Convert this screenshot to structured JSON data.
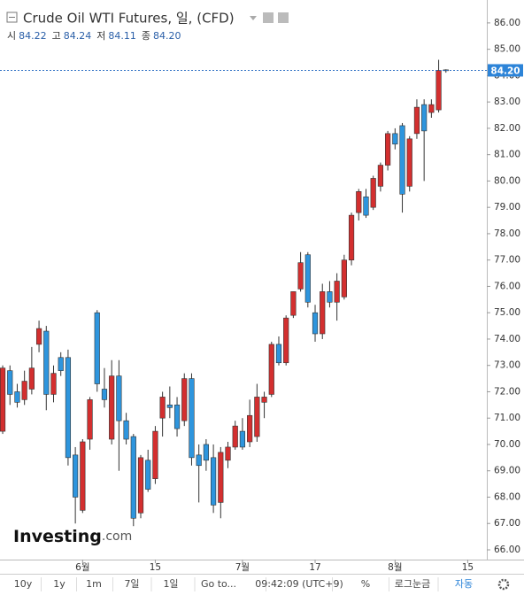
{
  "chart_data": {
    "type": "candlestick",
    "title": "Crude Oil WTI Futures, 일, (CFD)",
    "ohlc_legend": [
      {
        "label": "시",
        "value": "84.22"
      },
      {
        "label": "고",
        "value": "84.24"
      },
      {
        "label": "저",
        "value": "84.11"
      },
      {
        "label": "종",
        "value": "84.20"
      }
    ],
    "last_price": {
      "value": 84.2,
      "label": "84.20"
    },
    "up_color": "#d32f2f",
    "down_color": "#2e95dd",
    "open": [
      70.5,
      72.8,
      72.0,
      71.7,
      72.1,
      73.8,
      74.3,
      71.9,
      73.3,
      73.3,
      69.6,
      67.5,
      70.2,
      75.0,
      72.1,
      70.2,
      72.6,
      70.9,
      70.3,
      67.4,
      69.4,
      68.7,
      71.0,
      71.5,
      71.5,
      70.9,
      72.5,
      69.6,
      70.0,
      69.5,
      67.8,
      69.4,
      69.9,
      70.5,
      70.1,
      70.3,
      71.6,
      71.9,
      73.8,
      73.1,
      74.9,
      75.9,
      77.2,
      75.0,
      74.2,
      75.8,
      75.4,
      75.6,
      77.0,
      78.8,
      79.4,
      79.0,
      79.8,
      80.6,
      81.8,
      82.1,
      79.8,
      81.8,
      82.9,
      82.6,
      82.7,
      84.22
    ],
    "high": [
      73.0,
      73.0,
      72.3,
      72.8,
      73.7,
      74.7,
      74.5,
      73.0,
      73.5,
      73.6,
      69.9,
      70.2,
      71.8,
      75.1,
      72.9,
      73.2,
      73.2,
      71.2,
      70.4,
      69.6,
      69.8,
      70.7,
      72.0,
      72.2,
      71.8,
      72.7,
      72.7,
      70.0,
      70.2,
      70.0,
      69.9,
      70.1,
      70.9,
      71.0,
      71.7,
      72.3,
      72.0,
      73.9,
      74.1,
      74.9,
      75.8,
      77.3,
      77.3,
      75.3,
      76.1,
      76.2,
      76.5,
      77.2,
      78.8,
      79.7,
      79.7,
      80.2,
      80.7,
      81.9,
      82.0,
      82.2,
      81.7,
      83.1,
      83.1,
      83.1,
      84.6,
      84.24
    ],
    "low": [
      70.4,
      71.5,
      71.4,
      71.5,
      71.9,
      73.5,
      71.3,
      71.6,
      72.6,
      69.2,
      67.0,
      67.4,
      69.8,
      72.0,
      71.4,
      70.0,
      69.0,
      70.0,
      66.9,
      67.2,
      68.2,
      68.5,
      70.3,
      71.0,
      70.3,
      70.7,
      69.2,
      67.8,
      69.0,
      67.4,
      67.2,
      69.1,
      69.8,
      69.8,
      69.9,
      70.1,
      71.0,
      71.8,
      73.0,
      73.0,
      74.8,
      75.8,
      75.2,
      73.9,
      74.0,
      75.2,
      74.7,
      75.5,
      76.8,
      78.5,
      78.6,
      78.9,
      79.6,
      80.4,
      81.2,
      78.8,
      79.6,
      81.6,
      80.0,
      82.4,
      82.6,
      84.11
    ],
    "close": [
      72.9,
      71.9,
      71.6,
      72.4,
      72.9,
      74.4,
      71.9,
      72.7,
      72.8,
      69.5,
      68.0,
      70.1,
      71.7,
      72.3,
      71.7,
      72.6,
      70.9,
      70.2,
      67.2,
      69.5,
      68.3,
      70.5,
      71.8,
      71.4,
      70.6,
      72.5,
      69.5,
      69.2,
      69.4,
      67.7,
      69.7,
      69.9,
      70.7,
      69.9,
      71.1,
      71.8,
      71.8,
      73.8,
      73.1,
      74.8,
      75.8,
      76.9,
      75.4,
      74.2,
      75.8,
      75.4,
      76.2,
      77.0,
      78.7,
      79.6,
      78.7,
      80.1,
      80.6,
      81.8,
      81.4,
      79.5,
      81.6,
      82.8,
      81.9,
      82.9,
      84.2,
      84.2
    ],
    "xlim": [
      -0.37,
      66.63
    ],
    "xticks": [
      {
        "value": 11,
        "label": "6월"
      },
      {
        "value": 21,
        "label": "15"
      },
      {
        "value": 33,
        "label": "7월"
      },
      {
        "value": 43,
        "label": "17"
      },
      {
        "value": 54,
        "label": "8월"
      },
      {
        "value": 64,
        "label": "15"
      }
    ],
    "ylim": [
      65.63,
      86.87
    ],
    "yticks": [
      {
        "value": 66,
        "label": "66.00"
      },
      {
        "value": 67,
        "label": "67.00"
      },
      {
        "value": 68,
        "label": "68.00"
      },
      {
        "value": 69,
        "label": "69.00"
      },
      {
        "value": 70,
        "label": "70.00"
      },
      {
        "value": 71,
        "label": "71.00"
      },
      {
        "value": 72,
        "label": "72.00"
      },
      {
        "value": 73,
        "label": "73.00"
      },
      {
        "value": 74,
        "label": "74.00"
      },
      {
        "value": 75,
        "label": "75.00"
      },
      {
        "value": 76,
        "label": "76.00"
      },
      {
        "value": 77,
        "label": "77.00"
      },
      {
        "value": 78,
        "label": "78.00"
      },
      {
        "value": 79,
        "label": "79.00"
      },
      {
        "value": 80,
        "label": "80.00"
      },
      {
        "value": 81,
        "label": "81.00"
      },
      {
        "value": 82,
        "label": "82.00"
      },
      {
        "value": 83,
        "label": "83.00"
      },
      {
        "value": 84,
        "label": "84.00"
      },
      {
        "value": 85,
        "label": "85.00"
      },
      {
        "value": 86,
        "label": "86.00"
      }
    ],
    "logo": {
      "brand": "Investing",
      "suffix": ".com"
    },
    "toolbar": [
      "10y",
      "1y",
      "1m",
      "7일",
      "1일",
      "Go to...",
      "09:42:09 (UTC+9)",
      "%",
      "로그눈금",
      "자동"
    ]
  }
}
